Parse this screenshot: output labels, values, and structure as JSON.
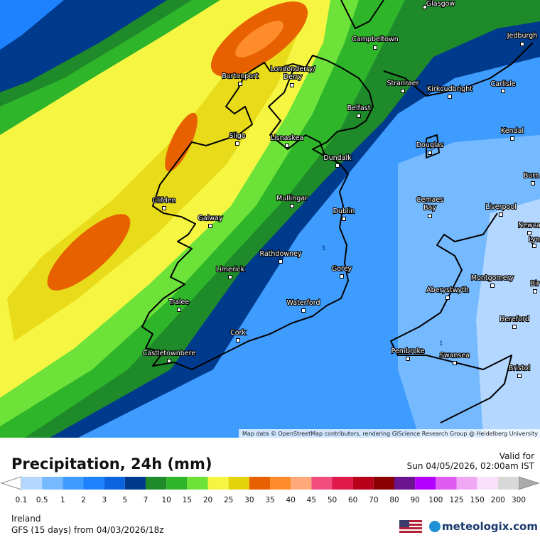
{
  "header": {
    "title": "Precipitation, 24h (mm)",
    "valid_label": "Valid for",
    "valid_time": "Sun 04/05/2026, 02:00am IST"
  },
  "map": {
    "attribution": "Map data © OpenStreetMap contributors, rendering GIScience Research Group @ Heidelberg University",
    "cities": [
      {
        "lines": [
          "Glasgow"
        ]
      },
      {
        "lines": [
          "Jedburgh"
        ]
      },
      {
        "lines": [
          "Campbeltown"
        ]
      },
      {
        "lines": [
          "Burtonport"
        ]
      },
      {
        "lines": [
          "Londonderry/",
          "Derry"
        ]
      },
      {
        "lines": [
          "Stranraer"
        ]
      },
      {
        "lines": [
          "Kirkcudbright"
        ]
      },
      {
        "lines": [
          "Carlisle"
        ]
      },
      {
        "lines": [
          "Belfast"
        ]
      },
      {
        "lines": [
          "Kendal"
        ]
      },
      {
        "lines": [
          "Sligo"
        ]
      },
      {
        "lines": [
          "Lisnaskea"
        ]
      },
      {
        "lines": [
          "Douglas"
        ]
      },
      {
        "lines": [
          "Dundalk"
        ]
      },
      {
        "lines": [
          "Burn"
        ]
      },
      {
        "lines": [
          "Clifden"
        ]
      },
      {
        "lines": [
          "Mullingar"
        ]
      },
      {
        "lines": [
          "Cemaes",
          "Bay"
        ]
      },
      {
        "lines": [
          "Liverpool"
        ]
      },
      {
        "lines": [
          "Galway"
        ]
      },
      {
        "lines": [
          "Dublin"
        ]
      },
      {
        "lines": [
          "Newca"
        ]
      },
      {
        "lines": [
          "Lyn"
        ]
      },
      {
        "lines": [
          "Rathdowney"
        ]
      },
      {
        "lines": [
          "Limerick"
        ]
      },
      {
        "lines": [
          "Gorey"
        ]
      },
      {
        "lines": [
          "Montgomery"
        ]
      },
      {
        "lines": [
          "Bir"
        ]
      },
      {
        "lines": [
          "Aberystwyth"
        ]
      },
      {
        "lines": [
          "Waterford"
        ]
      },
      {
        "lines": [
          "Tralee"
        ]
      },
      {
        "lines": [
          "Hereford"
        ]
      },
      {
        "lines": [
          "Cork"
        ]
      },
      {
        "lines": [
          "Pembroke"
        ]
      },
      {
        "lines": [
          "Swansea"
        ]
      },
      {
        "lines": [
          "Castletownbere"
        ]
      },
      {
        "lines": [
          "Bristol"
        ]
      }
    ],
    "contour_labels": [
      "3",
      "1"
    ]
  },
  "legend": {
    "ticks": [
      0.1,
      0.5,
      1,
      2,
      3,
      5,
      7,
      10,
      15,
      20,
      25,
      30,
      35,
      40,
      45,
      50,
      60,
      70,
      80,
      90,
      100,
      125,
      150,
      200,
      300
    ],
    "colors": [
      "#b4d7ff",
      "#75baff",
      "#3f9cff",
      "#1e82ff",
      "#0a64e0",
      "#003a8c",
      "#1f8a2a",
      "#2fb52a",
      "#6de33a",
      "#f5f542",
      "#e3d20a",
      "#e86100",
      "#ff8c2a",
      "#ffa97a",
      "#f04c7c",
      "#e0194a",
      "#b8001a",
      "#8b0000",
      "#6a1490",
      "#b400ff",
      "#e05cf0",
      "#f0a8f5",
      "#fbe0fb",
      "#d8d8d8"
    ]
  },
  "footer": {
    "region": "Ireland",
    "model": "GFS (15 days) from 04/03/2026/18z",
    "brand": "meteologix.com"
  }
}
